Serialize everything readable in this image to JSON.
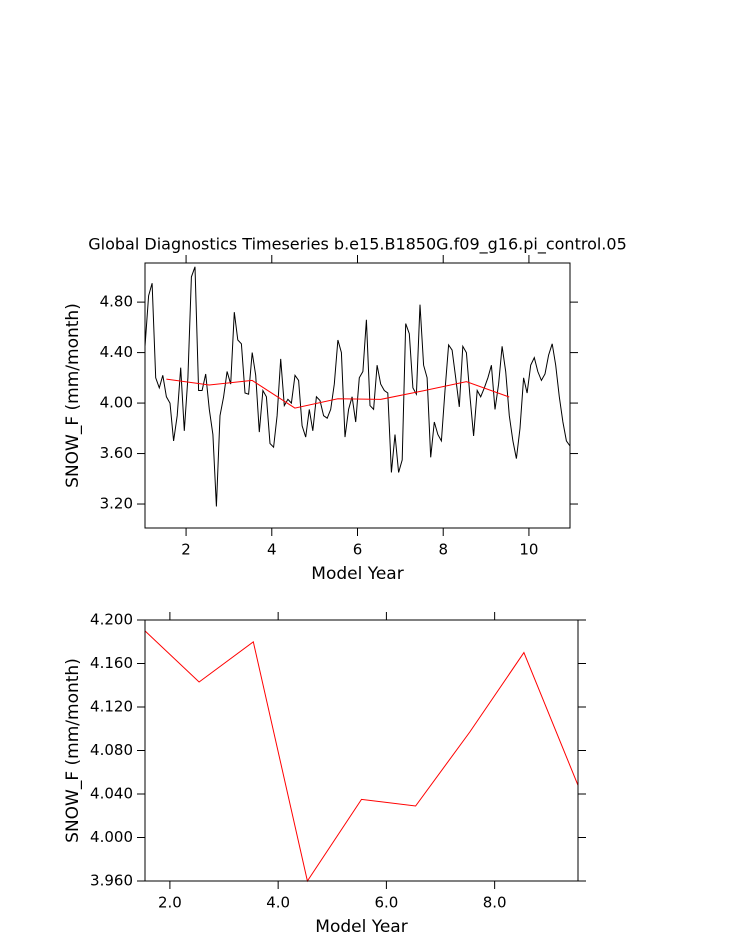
{
  "chart_data": [
    {
      "type": "line",
      "title": "Global Diagnostics Timeseries b.e15.B1850G.f09_g16.pi_control.05",
      "xlabel": "Model Year",
      "ylabel": "SNOW_F (mm/month)",
      "xlim": [
        1.0417,
        10.9583
      ],
      "ylim": [
        3.01,
        5.11
      ],
      "xticks": [
        2,
        4,
        6,
        8,
        10
      ],
      "yticks": [
        {
          "value": 3.2,
          "label": "3.20"
        },
        {
          "value": 3.6,
          "label": "3.60"
        },
        {
          "value": 4.0,
          "label": "4.00"
        },
        {
          "value": 4.4,
          "label": "4.40"
        },
        {
          "value": 4.8,
          "label": "4.80"
        }
      ],
      "series": [
        {
          "color": "#000000",
          "x": [
            1.042,
            1.125,
            1.208,
            1.292,
            1.375,
            1.458,
            1.542,
            1.625,
            1.708,
            1.792,
            1.875,
            1.958,
            2.042,
            2.125,
            2.208,
            2.292,
            2.375,
            2.458,
            2.542,
            2.625,
            2.708,
            2.792,
            2.875,
            2.958,
            3.042,
            3.125,
            3.208,
            3.292,
            3.375,
            3.458,
            3.542,
            3.625,
            3.708,
            3.792,
            3.875,
            3.958,
            4.042,
            4.125,
            4.208,
            4.292,
            4.375,
            4.458,
            4.542,
            4.625,
            4.708,
            4.792,
            4.875,
            4.958,
            5.042,
            5.125,
            5.208,
            5.292,
            5.375,
            5.458,
            5.542,
            5.625,
            5.708,
            5.792,
            5.875,
            5.958,
            6.042,
            6.125,
            6.208,
            6.292,
            6.375,
            6.458,
            6.542,
            6.625,
            6.708,
            6.792,
            6.875,
            6.958,
            7.042,
            7.125,
            7.208,
            7.292,
            7.375,
            7.458,
            7.542,
            7.625,
            7.708,
            7.792,
            7.875,
            7.958,
            8.042,
            8.125,
            8.208,
            8.292,
            8.375,
            8.458,
            8.542,
            8.625,
            8.708,
            8.792,
            8.875,
            8.958,
            9.042,
            9.125,
            9.208,
            9.292,
            9.375,
            9.458,
            9.542,
            9.625,
            9.708,
            9.792,
            9.875,
            9.958,
            10.042,
            10.125,
            10.208,
            10.292,
            10.375,
            10.458,
            10.542,
            10.625,
            10.708,
            10.792,
            10.875,
            10.958
          ],
          "values": [
            4.45,
            4.85,
            4.95,
            4.2,
            4.12,
            4.22,
            4.05,
            4.0,
            3.7,
            3.9,
            4.28,
            3.78,
            4.2,
            5.0,
            5.08,
            4.1,
            4.1,
            4.23,
            3.95,
            3.75,
            3.18,
            3.9,
            4.05,
            4.25,
            4.15,
            4.72,
            4.5,
            4.47,
            4.08,
            4.07,
            4.4,
            4.22,
            3.77,
            4.1,
            4.05,
            3.68,
            3.65,
            3.9,
            4.35,
            3.98,
            4.03,
            4.0,
            4.22,
            4.18,
            3.82,
            3.73,
            3.95,
            3.78,
            4.05,
            4.02,
            3.9,
            3.88,
            3.95,
            4.15,
            4.5,
            4.4,
            3.73,
            3.95,
            4.05,
            3.85,
            4.2,
            4.25,
            4.66,
            3.98,
            3.95,
            4.3,
            4.15,
            4.1,
            4.08,
            3.45,
            3.75,
            3.45,
            3.55,
            4.63,
            4.55,
            4.12,
            4.07,
            4.78,
            4.3,
            4.2,
            3.57,
            3.85,
            3.75,
            3.7,
            4.1,
            4.46,
            4.42,
            4.2,
            3.97,
            4.45,
            4.4,
            4.05,
            3.74,
            4.1,
            4.05,
            4.12,
            4.2,
            4.3,
            3.95,
            4.15,
            4.45,
            4.25,
            3.9,
            3.7,
            3.56,
            3.8,
            4.2,
            4.08,
            4.3,
            4.36,
            4.25,
            4.18,
            4.23,
            4.38,
            4.47,
            4.3,
            4.05,
            3.85,
            3.7,
            3.66
          ]
        },
        {
          "color": "#ff0000",
          "x": [
            1.54,
            2.54,
            3.54,
            4.54,
            5.54,
            6.54,
            7.54,
            8.54,
            9.54
          ],
          "values": [
            4.19,
            4.143,
            4.18,
            3.96,
            4.035,
            4.029,
            4.097,
            4.17,
            4.048
          ]
        }
      ]
    },
    {
      "type": "line",
      "xlabel": "Model Year",
      "ylabel": "SNOW_F (mm/month)",
      "xlim": [
        1.54,
        9.54
      ],
      "ylim": [
        3.96,
        4.2
      ],
      "xticks": [
        {
          "value": 2,
          "label": "2.0"
        },
        {
          "value": 4,
          "label": "4.0"
        },
        {
          "value": 6,
          "label": "6.0"
        },
        {
          "value": 8,
          "label": "8.0"
        }
      ],
      "yticks": [
        {
          "value": 3.96,
          "label": "3.960"
        },
        {
          "value": 4.0,
          "label": "4.000"
        },
        {
          "value": 4.04,
          "label": "4.040"
        },
        {
          "value": 4.08,
          "label": "4.080"
        },
        {
          "value": 4.12,
          "label": "4.120"
        },
        {
          "value": 4.16,
          "label": "4.160"
        },
        {
          "value": 4.2,
          "label": "4.200"
        }
      ],
      "series": [
        {
          "color": "#ff0000",
          "x": [
            1.54,
            2.54,
            3.54,
            4.54,
            5.54,
            6.54,
            7.54,
            8.54,
            9.54
          ],
          "values": [
            4.19,
            4.143,
            4.18,
            3.96,
            4.035,
            4.029,
            4.097,
            4.17,
            4.048
          ]
        }
      ]
    }
  ]
}
